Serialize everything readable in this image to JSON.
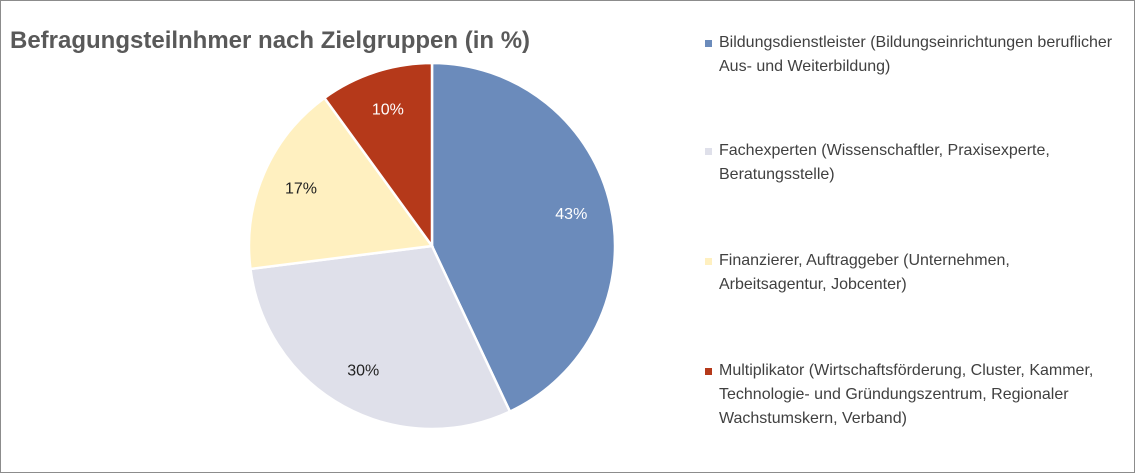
{
  "chart_data": {
    "type": "pie",
    "title": "Befragungsteilnhmer nach Zielgruppen (in %)",
    "categories": [
      "Bildungsdienstleister (Bildungseinrichtungen beruflicher Aus- und Weiterbildung)",
      "Fachexperten (Wissenschaftler, Praxisexperte, Beratungsstelle)",
      "Finanzierer, Auftraggeber (Unternehmen, Arbeitsagentur, Jobcenter)",
      "Multiplikator (Wirtschaftsförderung, Cluster, Kammer, Technologie- und Gründungszentrum, Regionaler Wachstumskern, Verband)"
    ],
    "values": [
      43,
      30,
      17,
      10
    ],
    "value_labels": [
      "43%",
      "30%",
      "17%",
      "10%"
    ],
    "colors": [
      "#6b8bbb",
      "#dfe0ea",
      "#fff0c0",
      "#b5391a"
    ],
    "legend": "right"
  }
}
